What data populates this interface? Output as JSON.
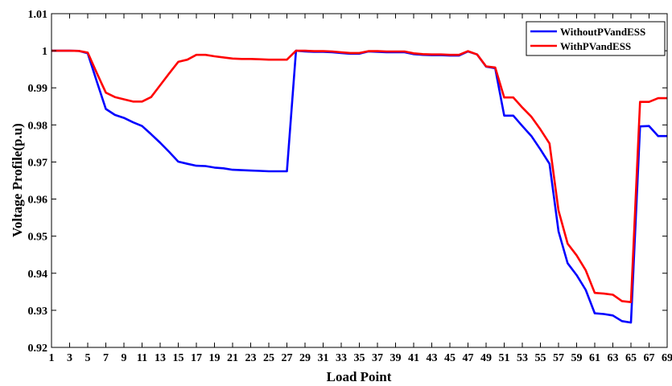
{
  "chart_data": {
    "type": "line",
    "title": "",
    "xlabel": "Load Point",
    "ylabel": "Voltage Profile(p.u)",
    "xlim": [
      1,
      69
    ],
    "ylim": [
      0.92,
      1.01
    ],
    "x_ticks": [
      1,
      3,
      5,
      7,
      9,
      11,
      13,
      15,
      17,
      19,
      21,
      23,
      25,
      27,
      29,
      31,
      33,
      35,
      37,
      39,
      41,
      43,
      45,
      47,
      49,
      51,
      53,
      55,
      57,
      59,
      61,
      63,
      65,
      67,
      69
    ],
    "y_ticks": [
      "0.92",
      "0.93",
      "0.94",
      "0.95",
      "0.96",
      "0.97",
      "0.98",
      "0.99",
      "1",
      "1.01"
    ],
    "grid": false,
    "legend_position": "top-right",
    "x": [
      1,
      2,
      3,
      4,
      5,
      6,
      7,
      8,
      9,
      10,
      11,
      12,
      13,
      14,
      15,
      16,
      17,
      18,
      19,
      20,
      21,
      22,
      23,
      24,
      25,
      26,
      27,
      28,
      29,
      30,
      31,
      32,
      33,
      34,
      35,
      36,
      37,
      38,
      39,
      40,
      41,
      42,
      43,
      44,
      45,
      46,
      47,
      48,
      49,
      50,
      51,
      52,
      53,
      54,
      55,
      56,
      57,
      58,
      59,
      60,
      61,
      62,
      63,
      64,
      65,
      66,
      67,
      68,
      69
    ],
    "series": [
      {
        "name": "WithoutPVandESS",
        "color": "#0000ff",
        "values": [
          1.0,
          1.0,
          1.0,
          0.99995,
          0.9993,
          0.9917,
          0.9843,
          0.9827,
          0.9819,
          0.9807,
          0.9797,
          0.9775,
          0.9752,
          0.9727,
          0.9701,
          0.9695,
          0.969,
          0.9689,
          0.9685,
          0.9683,
          0.9679,
          0.9678,
          0.9677,
          0.9676,
          0.9675,
          0.9675,
          0.9675,
          1.0,
          0.9998,
          0.9997,
          0.9997,
          0.9996,
          0.9994,
          0.9992,
          0.9992,
          0.9998,
          0.9997,
          0.9996,
          0.9996,
          0.9996,
          0.9991,
          0.9989,
          0.9988,
          0.9988,
          0.9987,
          0.9987,
          0.9998,
          0.999,
          0.9957,
          0.9953,
          0.9825,
          0.9825,
          0.9797,
          0.977,
          0.9734,
          0.9695,
          0.9513,
          0.9427,
          0.9395,
          0.9355,
          0.9292,
          0.929,
          0.9286,
          0.9271,
          0.9267,
          0.9796,
          0.9797,
          0.977,
          0.977
        ]
      },
      {
        "name": "WithPVandESS",
        "color": "#ff0000",
        "values": [
          1.0,
          1.0,
          1.0,
          0.99995,
          0.9995,
          0.994,
          0.9887,
          0.9875,
          0.9869,
          0.9863,
          0.9863,
          0.9875,
          0.9907,
          0.9939,
          0.997,
          0.9976,
          0.9989,
          0.9989,
          0.9985,
          0.9982,
          0.9979,
          0.9978,
          0.9978,
          0.9977,
          0.9976,
          0.9976,
          0.9976,
          1.0,
          1.0,
          0.9999,
          0.9999,
          0.9998,
          0.9996,
          0.9994,
          0.9994,
          0.9999,
          0.9999,
          0.9998,
          0.9998,
          0.9998,
          0.9993,
          0.9991,
          0.999,
          0.999,
          0.9989,
          0.9989,
          0.9999,
          0.999,
          0.9958,
          0.9955,
          0.9874,
          0.9874,
          0.9847,
          0.9822,
          0.9788,
          0.975,
          0.9569,
          0.948,
          0.9448,
          0.9408,
          0.9347,
          0.9345,
          0.9342,
          0.9325,
          0.9322,
          0.9862,
          0.9862,
          0.9872,
          0.9872
        ]
      }
    ]
  }
}
